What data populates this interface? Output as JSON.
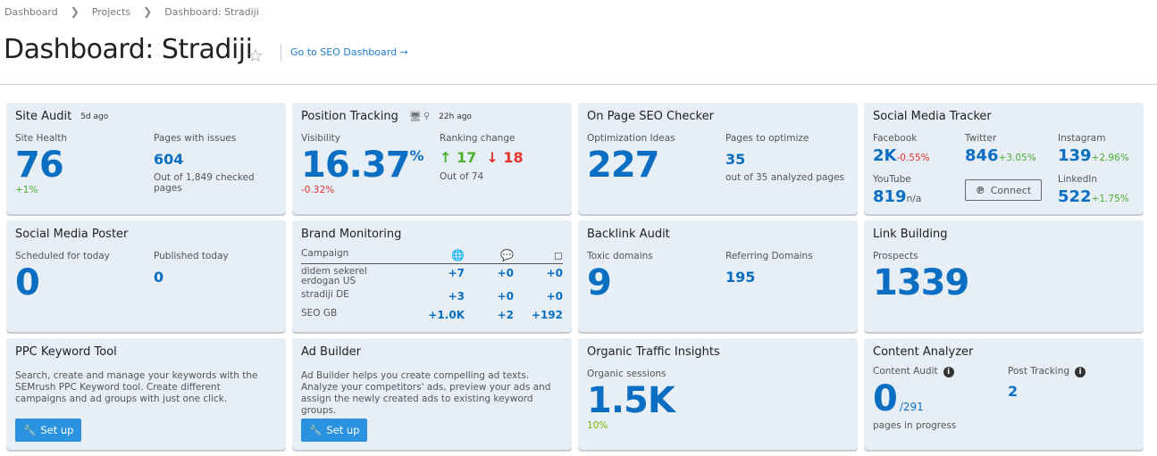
{
  "breadcrumb": [
    "Dashboard",
    "Projects",
    "Dashboard: Stradiji"
  ],
  "header": {
    "title": "Dashboard: Stradiji",
    "seo_link": "Go to SEO Dashboard →"
  },
  "colors": {
    "accent": "#0a6fc2",
    "positive": "#4caf30",
    "negative": "#e5322d",
    "button": "#2b92e0",
    "card": "#e7eef6"
  },
  "site_audit": {
    "title": "Site Audit",
    "ago": "5d ago",
    "health_label": "Site Health",
    "health": "76",
    "health_unit": "%",
    "health_change": "+1%",
    "issues_label": "Pages with issues",
    "issues": "604",
    "issues_note": "Out of 1,849 checked pages"
  },
  "position_tracking": {
    "title": "Position Tracking",
    "ago": "22h ago",
    "visibility_label": "Visibility",
    "visibility": "16.37",
    "unit": "%",
    "visibility_change": "-0.32%",
    "ranking_label": "Ranking change",
    "up": "17",
    "down": "18",
    "out_of": "Out of 74"
  },
  "on_page": {
    "title": "On Page SEO Checker",
    "ideas_label": "Optimization Ideas",
    "ideas": "227",
    "pages_label": "Pages to optimize",
    "pages": "35",
    "pages_note": "out of 35 analyzed pages"
  },
  "social_tracker": {
    "title": "Social Media Tracker",
    "connect": "Connect",
    "networks": [
      {
        "name": "Facebook",
        "value": "2K",
        "change": "-0.55%"
      },
      {
        "name": "Twitter",
        "value": "846",
        "change": "+3.05%"
      },
      {
        "name": "Instagram",
        "value": "139",
        "change": "+2.96%"
      },
      {
        "name": "YouTube",
        "value": "819",
        "change": "n/a"
      },
      {
        "name": "LinkedIn",
        "value": "522",
        "change": "+1.75%"
      }
    ]
  },
  "social_poster": {
    "title": "Social Media Poster",
    "scheduled_label": "Scheduled for today",
    "scheduled": "0",
    "published_label": "Published today",
    "published": "0"
  },
  "brand": {
    "title": "Brand Monitoring",
    "campaign_label": "Campaign",
    "rows": [
      {
        "name": "didem sekerel erdogan US",
        "web": "+7",
        "chat": "+0",
        "insta": "+0"
      },
      {
        "name": "stradiji DE",
        "web": "+3",
        "chat": "+0",
        "insta": "+0"
      },
      {
        "name": "SEO GB",
        "web": "+1.0K",
        "chat": "+2",
        "insta": "+192"
      }
    ]
  },
  "backlink": {
    "title": "Backlink Audit",
    "toxic_label": "Toxic domains",
    "toxic": "9",
    "ref_label": "Referring Domains",
    "ref": "195"
  },
  "link_building": {
    "title": "Link Building",
    "prospects_label": "Prospects",
    "prospects": "1339"
  },
  "ppc": {
    "title": "PPC Keyword Tool",
    "desc": "Search, create and manage your keywords with the SEMrush PPC Keyword tool. Create different campaigns and ad groups with just one click.",
    "button": "Set up"
  },
  "ad_builder": {
    "title": "Ad Builder",
    "desc": "Ad Builder helps you create compelling ad texts. Analyze your competitors' ads, preview your ads and assign the newly created ads to existing keyword groups.",
    "button": "Set up"
  },
  "organic": {
    "title": "Organic Traffic Insights",
    "sessions_label": "Organic sessions",
    "sessions": "1.5K",
    "change": "10%"
  },
  "content": {
    "title": "Content Analyzer",
    "audit_label": "Content Audit",
    "audit": "0",
    "audit_total": "/291",
    "audit_note": "pages in progress",
    "post_label": "Post Tracking",
    "post": "2"
  }
}
